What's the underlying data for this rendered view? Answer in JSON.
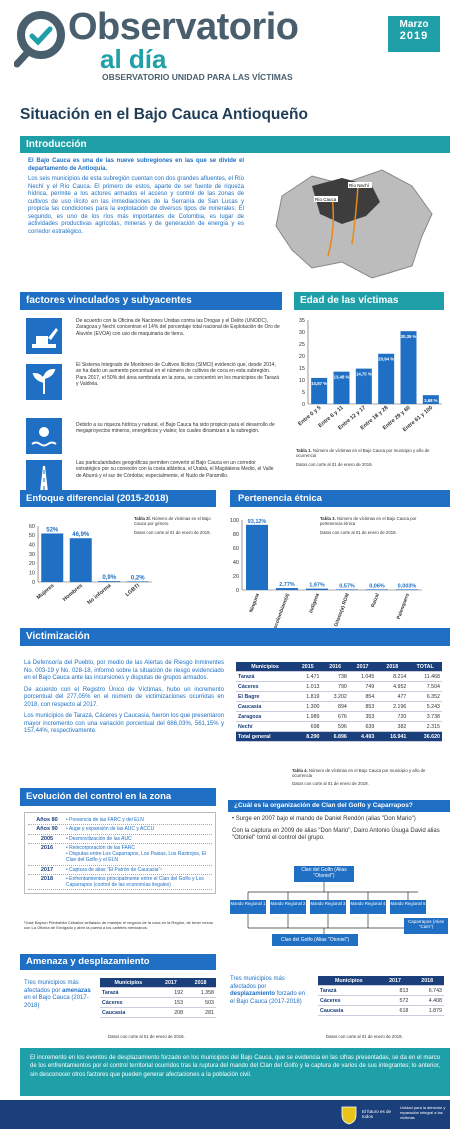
{
  "header": {
    "logo_top": "Observatorio",
    "logo_bottom": "al día",
    "subtitle": "OBSERVATORIO UNIDAD PARA LAS VÍCTIMAS",
    "month": "Marzo",
    "year": "2019",
    "main_title": "Situación en el Bajo Cauca Antioqueño"
  },
  "intro": {
    "heading": "Introducción",
    "lead": "El Bajo Cauca es una de las nueve subregiones en las que se divide el departamento de Antioquia.",
    "body": "Los seis municipios de esta subregión cuentan con dos grandes afluentes, el Río Nechí y el Río Cauca. El primero de estos, aparte de ser fuente de riqueza hídrica, permite a los actores armados el acceso y control de las zonas de cultivos de uso ilícito en las inmediaciones de la Serranía de San Lucas y propicia las condiciones para la explotación de diversos tipos de minerales. El segundo, es uno de los ríos más importantes de Colombia, es lugar de actividades productivas agrícolas, mineras y de generación de energía y es corredor estratégico.",
    "map_label_1": "Río Nechí",
    "map_label_2": "Río Cauca"
  },
  "factors": {
    "heading": "factores vinculados y subyacentes",
    "items": [
      "De acuerdo con la Oficina de Naciones Unidas contra las Drogas y el Delito (UNODC), Zaragoza y Nechí concentran el 14% del porcentaje total nacional de Explotación de Oro de Aluvión (EVOA) con uso de maquinaria de tierra.",
      "El Sistema Integrado de Monitoreo de Cultivos Ilícitos (SIMCI) evidenció que, desde 2014, se ha dado un aumento porcentual en el número de cultivos de coca en esta subregión. Para 2017, el 50% del área sembrada en la zona, se concentró en los municipios de Tarazá y Valdivia.",
      "Debido a su riqueza hídrica y natural, el Bajo Cauca ha sido propicio para el desarrollo de megaproyectos mineros, energéticos y viales; los cuales dinamizan a la subregión.",
      "Las particularidades geográficas permiten convertir al Bajo Cauca en un corredor estratégico por su conexión con la costa atlántica, el Urabá, el Magdalena Medio, el Valle de Aburrá y el sur de Córdoba; especialmente, el Nudo de Paramillo."
    ]
  },
  "age": {
    "heading": "Edad de las víctimas",
    "caption_bold": "Tabla 1.",
    "caption": "Número de víctimas en el Bajo Cauca por municipio y año de ocurrencia",
    "date": "Datos con corte al 01 de enero de 2019."
  },
  "diff": {
    "heading": "Enfoque diferencial (2015-2018)",
    "caption_bold": "Tabla 2l.",
    "caption": "Número de víctimas en el Bajo Cauca por género",
    "date": "Datos con corte al 01 de enero de 2019."
  },
  "ethnic": {
    "heading": "Pertenencia étnica",
    "caption_bold": "Tabla 3.",
    "caption": "Número de víctimas en el Bajo Cauca por pertenencia étnica",
    "date": "Datos con corte al 01 de enero de 2019."
  },
  "chart_data": [
    {
      "type": "bar",
      "categories": [
        "Entre 0 y 5",
        "Entre 6 y 11",
        "Entre 12 y 17",
        "Entre 18 y 28",
        "Entre 29 y 60",
        "Entre 61 y 100"
      ],
      "values": [
        10.87,
        13.48,
        14.75,
        20.94,
        30.35,
        3.68
      ],
      "labels": [
        "10,87 %",
        "13,48 %",
        "14,75 %",
        "20,94 %",
        "30,35 %",
        "3,68 %"
      ],
      "ylim": [
        0,
        35
      ],
      "yticks": [
        0,
        5,
        10,
        15,
        20,
        25,
        30,
        35
      ]
    },
    {
      "type": "bar",
      "categories": [
        "Mujeres",
        "Hombres",
        "No informa",
        "LGBTI"
      ],
      "values": [
        52,
        46.9,
        0.9,
        0.2
      ],
      "labels": [
        "52%",
        "46,9%",
        "0,9%",
        "0,2%"
      ],
      "ylim": [
        0,
        60
      ],
      "yticks": [
        0,
        10,
        20,
        30,
        40,
        50,
        60
      ]
    },
    {
      "type": "bar",
      "categories": [
        "Ninguna",
        "Negro(a) o Afrocolombiano(a)",
        "Indígena",
        "Gitano(a) ROM",
        "Raizal",
        "Palenquero"
      ],
      "values": [
        93.12,
        2.77,
        1.97,
        0.57,
        0.06,
        0.003
      ],
      "labels": [
        "93,12%",
        "2,77%",
        "1,97%",
        "0,57%",
        "0,06%",
        "0,003%"
      ],
      "ylim": [
        0,
        100
      ],
      "yticks": [
        0,
        20,
        40,
        60,
        80,
        100
      ]
    }
  ],
  "victim": {
    "heading": "Victimización",
    "p1": "La Defensoría del Pueblo, por medio de las Alertas de Riesgo Inminentes No. 003-19 y No. 028-18, informó sobre la situación de riesgo evidenciado en el Bajo Cauca ante las incursiones y disputas de grupos armados.",
    "p2": "De acuerdo con el Registro Único de Víctimas, hubo un incremento porcentual del 277,05% en el número de victimizaciones ocurridas en 2018, con respecto al 2017.",
    "p3": "Los municipios de Tarazá, Cáceres y Caucasia, fueron los que presentaron mayor incremento con una variación porcentual del 686,03%, 561,15% y 157,44%, respectivamente.",
    "cols": [
      "Municipios",
      "2015",
      "2016",
      "2017",
      "2018",
      "TOTAL"
    ],
    "rows": [
      [
        "Tarazá",
        "1.471",
        "738",
        "1.045",
        "8.214",
        "11.468"
      ],
      [
        "Cáceres",
        "1.013",
        "790",
        "749",
        "4.952",
        "7.504"
      ],
      [
        "El Bagre",
        "1.819",
        "3.202",
        "854",
        "477",
        "6.352"
      ],
      [
        "Caucasia",
        "1.300",
        "894",
        "853",
        "2.196",
        "5.243"
      ],
      [
        "Zaragoza",
        "1.989",
        "676",
        "353",
        "720",
        "3.738"
      ],
      [
        "Nechí",
        "698",
        "596",
        "639",
        "382",
        "2.315"
      ]
    ],
    "total": [
      "Total general",
      "8.290",
      "6.896",
      "4.493",
      "16.941",
      "36.620"
    ],
    "caption_bold": "Tabla 4.",
    "caption": "Número de víctimas en el Bajo Cauca por municipio y año de ocurrencia",
    "date": "Datos con corte al 01 de enero de 2019."
  },
  "evolution": {
    "heading": "Evolución del control en la zona",
    "rows": [
      {
        "year": "Años 80",
        "items": [
          "Presencia de las FARC y del ELN"
        ]
      },
      {
        "year": "Años 90",
        "items": [
          "Auge y expansión de las AUC y ACCU"
        ]
      },
      {
        "year": "2005",
        "items": [
          "Desmovilización de las AUC"
        ]
      },
      {
        "year": "2016",
        "items": [
          "Reincorporación de las FARC",
          "Disputas entre Los Caparrapos, Los Paisas, Los Rastrojos, El Clan del Golfo y el ELN"
        ]
      },
      {
        "year": "2017",
        "items": [
          "Captura de alias \"El Patrón de Caucasia\"¹"
        ]
      },
      {
        "year": "2018",
        "items": [
          "Enfrentamientos principalmente entre el Clan del Golfo y Los Caparrapos (control de las economías ilegales)"
        ]
      }
    ],
    "footnote": "¹José Bayron Piedrahita Ceballos señalado de manejar el negocio de la coca en la Región, de tener nexos con La Oficina de Envigado y abrir la puerta a los carteles mexicanos."
  },
  "clan": {
    "question": "¿Cuál es la organización de Clan del Golfo y Caparrapos?",
    "p1": "Surge en 2007 bajo el mando de Daniel Rendón (alias \"Don Mario\")",
    "p2": "Con la captura en 2009 de alias \"Don Mario\", Dairo Antonio Úsuga David alias \"Otoniel\" tomó el control del grupo.",
    "top": "Clan del Golfo (Alias \"Otoniel\")",
    "regions": [
      "Mando Regional 1",
      "Mando Regional 2",
      "Mando Regional 3",
      "Mando Regional 4",
      "Mando Regional 5"
    ],
    "bottom": "Clan del Golfo (Alias \"Otoniel\")",
    "side": "Caparrapos (Alias \"Caín\")"
  },
  "displacement": {
    "heading": "Amenaza y desplazamiento",
    "left_pre": "Tres municipios más afectados por ",
    "left_bold": "amenazas",
    "left_post": " en el Bajo Cauca (2017-2018)",
    "right_pre": "Tres municipios más afectados por ",
    "right_bold": "desplazamiento",
    "right_post": " forzado en el Bajo Cauca (2017-2018)",
    "cols": [
      "Municipios",
      "2017",
      "2018"
    ],
    "left_rows": [
      [
        "Tarazá",
        "192",
        "1.358"
      ],
      [
        "Cáceres",
        "153",
        "503"
      ],
      [
        "Caucasia",
        "208",
        "281"
      ]
    ],
    "right_rows": [
      [
        "Tarazá",
        "813",
        "6.743"
      ],
      [
        "Cáceres",
        "572",
        "4.408"
      ],
      [
        "Caucasia",
        "618",
        "1.879"
      ]
    ],
    "date": "Datos con corte al 01 de enero de 2019."
  },
  "footer": {
    "text": "El incremento en los eventos de desplazamiento forzado en los municipios del Bajo Cauca, que se evidencia en las cifras presentadas, se da en el marco de los enfrentamientos por el control territorial ocurridos tras la ruptura del mando del Clan del Golfo y la captura de varios de sus integrantes; lo anterior, sin desconocer otros factores que pueden generar afectaciones a la población civil.",
    "gov1": "El futuro es de todos",
    "gov2": "Unidad para la atención y reparación integral a las víctimas"
  },
  "colors": {
    "teal": "#1fa0a8",
    "blue": "#1f6fc4",
    "navy": "#1b3f7a"
  }
}
